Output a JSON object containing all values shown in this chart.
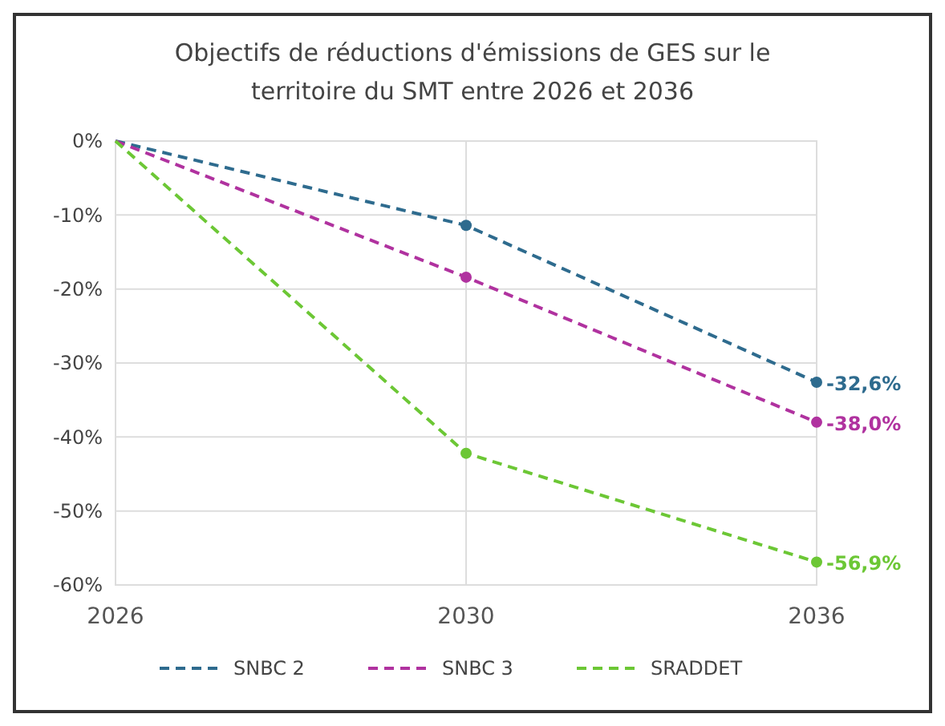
{
  "chart_data": {
    "type": "line",
    "title": "Objectifs de réductions d'émissions de GES sur le territoire du SMT entre 2026 et 2036",
    "categories": [
      "2026",
      "2030",
      "2036"
    ],
    "series": [
      {
        "name": "SNBC 2",
        "color": "#2e6b8e",
        "values": [
          0,
          -11.4,
          -32.6
        ],
        "value_labels": [
          null,
          null,
          "-32,6%"
        ]
      },
      {
        "name": "SNBC 3",
        "color": "#b0329f",
        "values": [
          0,
          -18.4,
          -38.0
        ],
        "value_labels": [
          null,
          null,
          "-38,0%"
        ]
      },
      {
        "name": "SRADDET",
        "color": "#6cc735",
        "values": [
          0,
          -42.2,
          -56.9
        ],
        "value_labels": [
          null,
          null,
          "-56,9%"
        ]
      }
    ],
    "ylim": [
      -60,
      0
    ],
    "yticks": [
      {
        "value": 0,
        "label": "0%"
      },
      {
        "value": -10,
        "label": "-10%"
      },
      {
        "value": -20,
        "label": "-20%"
      },
      {
        "value": -30,
        "label": "-30%"
      },
      {
        "value": -40,
        "label": "-40%"
      },
      {
        "value": -50,
        "label": "-50%"
      },
      {
        "value": -60,
        "label": "-60%"
      }
    ],
    "grid": true,
    "legend": "bottom",
    "marker": "circle",
    "line_style": "dashed"
  }
}
